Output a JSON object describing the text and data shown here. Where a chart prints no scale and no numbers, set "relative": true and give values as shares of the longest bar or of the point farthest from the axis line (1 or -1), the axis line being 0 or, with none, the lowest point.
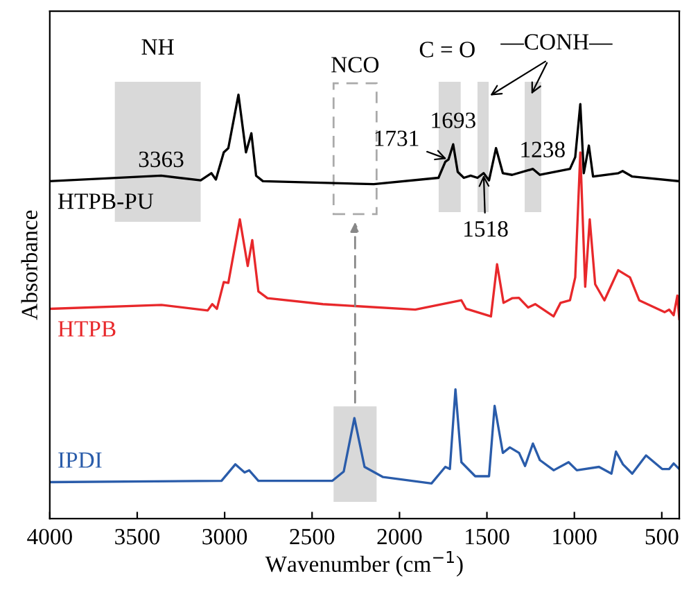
{
  "chart_data": {
    "type": "line",
    "relative": true,
    "xlabel": "Wavenumber (cm$^{−1}$)",
    "ylabel": "Absorbance",
    "xlim": [
      4000,
      400
    ],
    "xticks": [
      4000,
      3500,
      3000,
      2500,
      2000,
      1500,
      1000,
      500
    ],
    "tick_labels": "x",
    "grid": false,
    "legend": false,
    "series": [
      {
        "name": "HTPB-PU",
        "color": "#000000",
        "x": [
          4000,
          3363,
          3137,
          3076,
          3050,
          3005,
          2979,
          2921,
          2878,
          2847,
          2820,
          2781,
          2147,
          1777,
          1738,
          1720,
          1693,
          1667,
          1632,
          1593,
          1554,
          1519,
          1488,
          1448,
          1409,
          1356,
          1237,
          1197,
          1025,
          995,
          966,
          946,
          917,
          893,
          748,
          724,
          669,
          400
        ],
        "values": [
          0.796,
          0.809,
          0.798,
          0.815,
          0.8,
          0.864,
          0.874,
          1.0,
          0.864,
          0.909,
          0.809,
          0.796,
          0.789,
          0.804,
          0.842,
          0.847,
          0.883,
          0.818,
          0.804,
          0.809,
          0.804,
          0.815,
          0.798,
          0.874,
          0.815,
          0.811,
          0.825,
          0.811,
          0.825,
          0.853,
          0.978,
          0.815,
          0.88,
          0.807,
          0.815,
          0.82,
          0.807,
          0.796
        ]
      },
      {
        "name": "HTPB",
        "color": "#e8282b",
        "x": [
          4000,
          3361,
          3097,
          3071,
          3044,
          3005,
          2979,
          2913,
          2868,
          2842,
          2807,
          2755,
          2438,
          1910,
          1646,
          1619,
          1477,
          1442,
          1405,
          1356,
          1317,
          1264,
          1224,
          1119,
          1079,
          1025,
          995,
          966,
          938,
          912,
          881,
          828,
          749,
          682,
          629,
          484,
          458,
          432,
          411,
          400
        ],
        "values": [
          0.495,
          0.504,
          0.491,
          0.506,
          0.495,
          0.558,
          0.556,
          0.706,
          0.596,
          0.657,
          0.536,
          0.52,
          0.506,
          0.493,
          0.515,
          0.495,
          0.477,
          0.6,
          0.509,
          0.52,
          0.521,
          0.498,
          0.506,
          0.477,
          0.509,
          0.515,
          0.569,
          0.864,
          0.547,
          0.706,
          0.553,
          0.515,
          0.586,
          0.569,
          0.515,
          0.487,
          0.493,
          0.48,
          0.526,
          0.471
        ]
      },
      {
        "name": "IPDI",
        "color": "#2a5caa",
        "x": [
          4000,
          3018,
          2939,
          2886,
          2860,
          2807,
          2385,
          2319,
          2258,
          2200,
          2094,
          1817,
          1738,
          1712,
          1680,
          1646,
          1567,
          1488,
          1456,
          1409,
          1369,
          1316,
          1282,
          1237,
          1197,
          1118,
          1033,
          986,
          859,
          788,
          762,
          722,
          669,
          590,
          498,
          458,
          432,
          400
        ],
        "values": [
          0.086,
          0.089,
          0.128,
          0.109,
          0.114,
          0.089,
          0.089,
          0.111,
          0.237,
          0.122,
          0.098,
          0.083,
          0.122,
          0.117,
          0.305,
          0.133,
          0.1,
          0.1,
          0.266,
          0.155,
          0.168,
          0.155,
          0.124,
          0.177,
          0.138,
          0.114,
          0.133,
          0.114,
          0.122,
          0.106,
          0.158,
          0.128,
          0.106,
          0.149,
          0.117,
          0.117,
          0.13,
          0.117
        ]
      }
    ],
    "bands": [
      {
        "axis": "x",
        "from": 3628,
        "to": 3137,
        "label": "NH",
        "color": "#d9d9d9"
      },
      {
        "axis": "x",
        "from": 2377,
        "to": 2131,
        "label": null,
        "color": "#d9d9d9"
      },
      {
        "axis": "x",
        "from": 1776,
        "to": 1650,
        "label": null,
        "color": "#d9d9d9"
      },
      {
        "axis": "x",
        "from": 1554,
        "to": 1490,
        "label": null,
        "color": "#d9d9d9"
      },
      {
        "axis": "x",
        "from": 1284,
        "to": 1189,
        "label": null,
        "color": "#d9d9d9"
      }
    ],
    "annotations": [
      {
        "text": "3363",
        "x": 3363,
        "y": 0.809
      },
      {
        "text": "1731",
        "x": 1720,
        "y": 0.847
      },
      {
        "text": "1693",
        "x": 1693,
        "y": 0.883
      },
      {
        "text": "1518",
        "x": 1519,
        "y": 0.815
      },
      {
        "text": "1238",
        "x": 1237,
        "y": 0.825
      },
      "NCO",
      "C = O",
      "—CONH—"
    ]
  }
}
